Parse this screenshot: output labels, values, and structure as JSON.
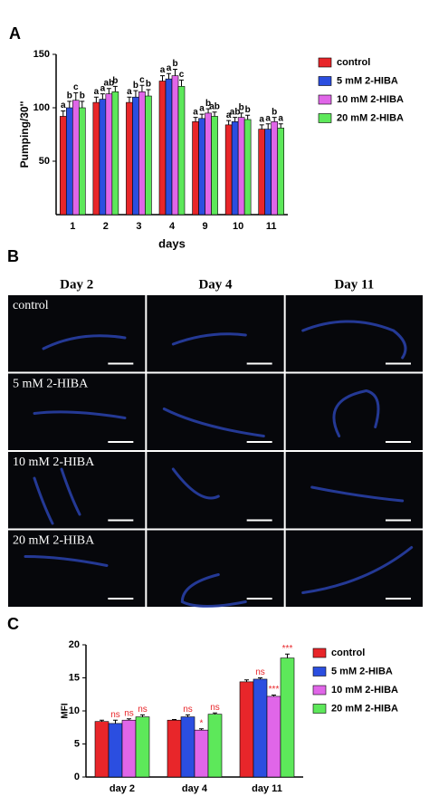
{
  "panel_labels": [
    "A",
    "B",
    "C"
  ],
  "image_grid": {
    "columns": [
      "Day 2",
      "Day 4",
      "Day 11"
    ],
    "rows": [
      "control",
      "5 mM 2-HIBA",
      "10 mM 2-HIBA",
      "20 mM 2-HIBA"
    ]
  },
  "chart_data": [
    {
      "type": "bar",
      "x_label": "days",
      "y_label": "Pumping/30''",
      "categories": [
        "1",
        "2",
        "3",
        "4",
        "9",
        "10",
        "11"
      ],
      "ylim": [
        0,
        150
      ],
      "yticks": [
        50,
        100,
        150
      ],
      "legend": "right",
      "series": [
        {
          "name": "control",
          "color": "#e8262a",
          "values": [
            92,
            105,
            105,
            125,
            87,
            84,
            80
          ],
          "errors": [
            5,
            5,
            5,
            5,
            4,
            4,
            4
          ],
          "letters": [
            "a",
            "a",
            "a",
            "a",
            "a",
            "a",
            "a"
          ]
        },
        {
          "name": "5 mM 2-HIBA",
          "color": "#2b4ee0",
          "values": [
            100,
            108,
            110,
            127,
            90,
            87,
            80
          ],
          "errors": [
            6,
            5,
            6,
            5,
            4,
            4,
            5
          ],
          "letters": [
            "b",
            "a",
            "b",
            "a",
            "a",
            "ab",
            "a"
          ]
        },
        {
          "name": "10 mM 2-HIBA",
          "color": "#e066e8",
          "values": [
            107,
            113,
            115,
            130,
            95,
            91,
            87
          ],
          "errors": [
            7,
            5,
            6,
            6,
            4,
            4,
            4
          ],
          "letters": [
            "c",
            "ab",
            "c",
            "b",
            "b",
            "b",
            "b"
          ]
        },
        {
          "name": "20 mM 2-HIBA",
          "color": "#5de85a",
          "values": [
            100,
            115,
            111,
            120,
            92,
            89,
            81
          ],
          "errors": [
            6,
            5,
            6,
            6,
            4,
            4,
            4
          ],
          "letters": [
            "b",
            "b",
            "b",
            "c",
            "ab",
            "b",
            "a"
          ]
        }
      ]
    },
    {
      "type": "bar",
      "y_label": "MFI",
      "categories": [
        "day 2",
        "day 4",
        "day 11"
      ],
      "ylim": [
        0,
        20
      ],
      "yticks": [
        0,
        5,
        10,
        15,
        20
      ],
      "legend": "right",
      "series": [
        {
          "name": "control",
          "color": "#e8262a",
          "values": [
            8.4,
            8.6,
            14.4
          ],
          "errors": [
            0.2,
            0.1,
            0.3
          ],
          "letters": [
            null,
            null,
            null
          ]
        },
        {
          "name": "5 mM 2-HIBA",
          "color": "#2b4ee0",
          "values": [
            8.1,
            9.1,
            14.8
          ],
          "errors": [
            0.5,
            0.3,
            0.2
          ],
          "letters": [
            "ns",
            "ns",
            "ns"
          ]
        },
        {
          "name": "10 mM 2-HIBA",
          "color": "#e066e8",
          "values": [
            8.6,
            7.1,
            12.2
          ],
          "errors": [
            0.2,
            0.2,
            0.2
          ],
          "letters": [
            "ns",
            "*",
            "***"
          ]
        },
        {
          "name": "20 mM 2-HIBA",
          "color": "#5de85a",
          "values": [
            9.1,
            9.5,
            18.0
          ],
          "errors": [
            0.3,
            0.2,
            0.6
          ],
          "letters": [
            "ns",
            "ns",
            "***"
          ]
        }
      ]
    }
  ]
}
